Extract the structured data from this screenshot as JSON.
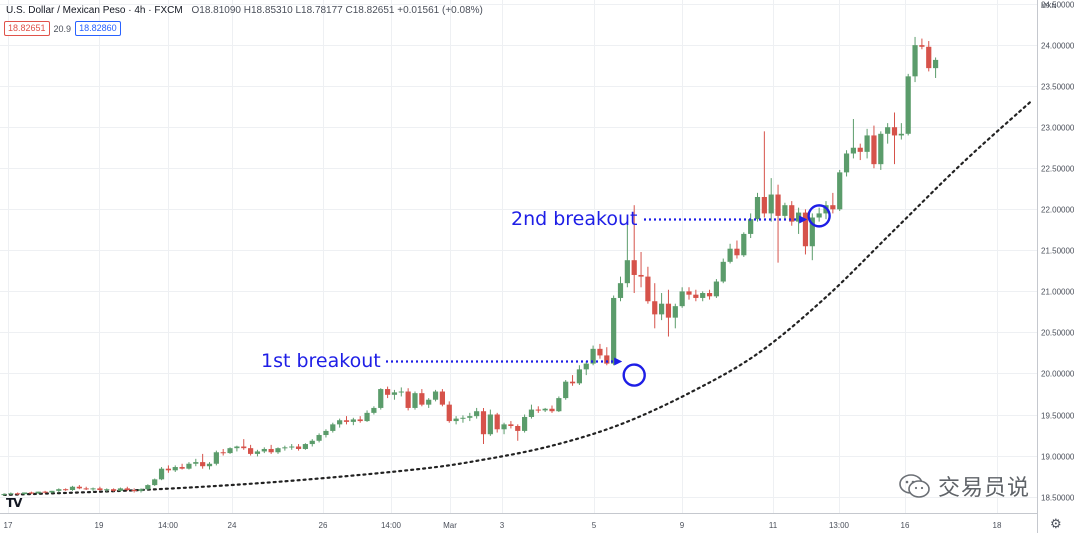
{
  "header": {
    "symbol": "U.S. Dollar / Mexican Peso · 4h · FXCM",
    "ohlc": "O18.81090 H18.85310 L18.78177 C18.82651 +0.01561 (+0.08%)"
  },
  "badges": {
    "sell": "18.82651",
    "spread": "20.9",
    "buy": "18.82860"
  },
  "currency_label": "MXN",
  "logo_text": "TV",
  "watermark_text": "交易员说",
  "annotations": [
    {
      "id": "first",
      "text": "1st breakout"
    },
    {
      "id": "second",
      "text": "2nd breakout"
    }
  ],
  "colors": {
    "up": "#5b9c6b",
    "down": "#d6524a",
    "annotation": "#1e1ee6",
    "curve": "#222222"
  },
  "chart_data": {
    "type": "candlestick",
    "y_ticks": [
      "18.50000",
      "19.00000",
      "19.50000",
      "20.00000",
      "20.50000",
      "21.00000",
      "21.50000",
      "22.00000",
      "22.50000",
      "23.00000",
      "23.50000",
      "24.00000",
      "24.50000"
    ],
    "x_ticks": [
      "17",
      "19",
      "14:00",
      "24",
      "26",
      "14:00",
      "Mar",
      "3",
      "5",
      "9",
      "11",
      "13:00",
      "16",
      "18"
    ],
    "ylim": [
      18.3,
      24.55
    ],
    "grid": true,
    "trend_curve": [
      [
        0,
        18.52
      ],
      [
        20,
        18.58
      ],
      [
        40,
        18.68
      ],
      [
        60,
        18.83
      ],
      [
        70,
        18.95
      ],
      [
        80,
        19.12
      ],
      [
        90,
        19.38
      ],
      [
        100,
        19.76
      ],
      [
        110,
        20.24
      ],
      [
        120,
        20.93
      ],
      [
        130,
        21.75
      ],
      [
        140,
        22.57
      ],
      [
        150,
        23.32
      ]
    ],
    "candles": [
      [
        18.52,
        18.54,
        18.51,
        18.53
      ],
      [
        18.53,
        18.55,
        18.52,
        18.54
      ],
      [
        18.54,
        18.55,
        18.52,
        18.53
      ],
      [
        18.53,
        18.55,
        18.52,
        18.55
      ],
      [
        18.55,
        18.56,
        18.53,
        18.54
      ],
      [
        18.54,
        18.56,
        18.53,
        18.56
      ],
      [
        18.56,
        18.57,
        18.54,
        18.55
      ],
      [
        18.55,
        18.57,
        18.54,
        18.57
      ],
      [
        18.57,
        18.6,
        18.55,
        18.59
      ],
      [
        18.59,
        18.6,
        18.57,
        18.58
      ],
      [
        18.58,
        18.63,
        18.57,
        18.62
      ],
      [
        18.62,
        18.64,
        18.59,
        18.6
      ],
      [
        18.6,
        18.62,
        18.58,
        18.59
      ],
      [
        18.59,
        18.61,
        18.57,
        18.6
      ],
      [
        18.6,
        18.62,
        18.57,
        18.58
      ],
      [
        18.58,
        18.6,
        18.56,
        18.59
      ],
      [
        18.59,
        18.6,
        18.56,
        18.57
      ],
      [
        18.57,
        18.61,
        18.56,
        18.6
      ],
      [
        18.6,
        18.62,
        18.57,
        18.58
      ],
      [
        18.58,
        18.6,
        18.55,
        18.57
      ],
      [
        18.57,
        18.6,
        18.55,
        18.59
      ],
      [
        18.59,
        18.65,
        18.58,
        18.64
      ],
      [
        18.64,
        18.72,
        18.63,
        18.71
      ],
      [
        18.71,
        18.86,
        18.7,
        18.84
      ],
      [
        18.84,
        18.88,
        18.79,
        18.82
      ],
      [
        18.82,
        18.88,
        18.8,
        18.86
      ],
      [
        18.86,
        18.9,
        18.83,
        18.84
      ],
      [
        18.84,
        18.92,
        18.83,
        18.9
      ],
      [
        18.9,
        18.96,
        18.87,
        18.92
      ],
      [
        18.92,
        19.02,
        18.84,
        18.87
      ],
      [
        18.87,
        18.92,
        18.83,
        18.9
      ],
      [
        18.9,
        19.06,
        18.88,
        19.04
      ],
      [
        19.04,
        19.08,
        19.0,
        19.03
      ],
      [
        19.03,
        19.1,
        19.02,
        19.09
      ],
      [
        19.09,
        19.12,
        19.05,
        19.11
      ],
      [
        19.11,
        19.2,
        19.07,
        19.09
      ],
      [
        19.09,
        19.13,
        19.0,
        19.02
      ],
      [
        19.02,
        19.07,
        18.99,
        19.05
      ],
      [
        19.05,
        19.1,
        19.03,
        19.08
      ],
      [
        19.08,
        19.13,
        19.02,
        19.04
      ],
      [
        19.04,
        19.1,
        19.02,
        19.09
      ],
      [
        19.09,
        19.12,
        19.06,
        19.1
      ],
      [
        19.1,
        19.14,
        19.07,
        19.11
      ],
      [
        19.11,
        19.14,
        19.06,
        19.08
      ],
      [
        19.08,
        19.15,
        19.07,
        19.14
      ],
      [
        19.14,
        19.2,
        19.11,
        19.18
      ],
      [
        19.18,
        19.27,
        19.16,
        19.25
      ],
      [
        19.25,
        19.32,
        19.22,
        19.3
      ],
      [
        19.3,
        19.4,
        19.28,
        19.38
      ],
      [
        19.38,
        19.45,
        19.34,
        19.43
      ],
      [
        19.43,
        19.48,
        19.38,
        19.41
      ],
      [
        19.41,
        19.46,
        19.37,
        19.44
      ],
      [
        19.44,
        19.48,
        19.4,
        19.42
      ],
      [
        19.42,
        19.55,
        19.41,
        19.52
      ],
      [
        19.52,
        19.6,
        19.5,
        19.58
      ],
      [
        19.58,
        19.82,
        19.56,
        19.81
      ],
      [
        19.81,
        19.84,
        19.7,
        19.74
      ],
      [
        19.74,
        19.8,
        19.68,
        19.77
      ],
      [
        19.77,
        19.83,
        19.72,
        19.78
      ],
      [
        19.78,
        19.82,
        19.55,
        19.58
      ],
      [
        19.58,
        19.78,
        19.56,
        19.76
      ],
      [
        19.76,
        19.81,
        19.6,
        19.62
      ],
      [
        19.62,
        19.7,
        19.58,
        19.68
      ],
      [
        19.68,
        19.8,
        19.66,
        19.78
      ],
      [
        19.78,
        19.81,
        19.6,
        19.62
      ],
      [
        19.62,
        19.66,
        19.4,
        19.42
      ],
      [
        19.42,
        19.48,
        19.38,
        19.45
      ],
      [
        19.45,
        19.49,
        19.4,
        19.46
      ],
      [
        19.46,
        19.52,
        19.42,
        19.48
      ],
      [
        19.48,
        19.58,
        19.45,
        19.54
      ],
      [
        19.54,
        19.58,
        19.14,
        19.26
      ],
      [
        19.26,
        19.56,
        19.24,
        19.5
      ],
      [
        19.5,
        19.52,
        19.28,
        19.32
      ],
      [
        19.32,
        19.4,
        19.26,
        19.38
      ],
      [
        19.38,
        19.42,
        19.33,
        19.36
      ],
      [
        19.36,
        19.38,
        19.18,
        19.3
      ],
      [
        19.3,
        19.5,
        19.28,
        19.47
      ],
      [
        19.47,
        19.62,
        19.45,
        19.56
      ],
      [
        19.56,
        19.6,
        19.52,
        19.55
      ],
      [
        19.55,
        19.58,
        19.53,
        19.57
      ],
      [
        19.57,
        19.61,
        19.52,
        19.54
      ],
      [
        19.54,
        19.72,
        19.53,
        19.7
      ],
      [
        19.7,
        19.92,
        19.68,
        19.9
      ],
      [
        19.9,
        19.98,
        19.85,
        19.88
      ],
      [
        19.88,
        20.1,
        19.86,
        20.05
      ],
      [
        20.05,
        20.15,
        19.98,
        20.12
      ],
      [
        20.12,
        20.34,
        20.1,
        20.3
      ],
      [
        20.3,
        20.36,
        20.18,
        20.22
      ],
      [
        20.22,
        20.32,
        20.1,
        20.12
      ],
      [
        20.12,
        20.95,
        20.1,
        20.92
      ],
      [
        20.92,
        21.18,
        20.88,
        21.1
      ],
      [
        21.1,
        21.85,
        21.05,
        21.38
      ],
      [
        21.38,
        22.05,
        20.98,
        21.2
      ],
      [
        21.2,
        21.48,
        21.05,
        21.18
      ],
      [
        21.18,
        21.3,
        20.85,
        20.88
      ],
      [
        20.88,
        21.1,
        20.55,
        20.72
      ],
      [
        20.72,
        20.98,
        20.65,
        20.85
      ],
      [
        20.85,
        21.02,
        20.45,
        20.68
      ],
      [
        20.68,
        20.85,
        20.55,
        20.82
      ],
      [
        20.82,
        21.05,
        20.8,
        21.0
      ],
      [
        21.0,
        21.05,
        20.9,
        20.96
      ],
      [
        20.96,
        21.02,
        20.88,
        20.92
      ],
      [
        20.92,
        21.0,
        20.88,
        20.98
      ],
      [
        20.98,
        21.02,
        20.9,
        20.94
      ],
      [
        20.94,
        21.15,
        20.92,
        21.12
      ],
      [
        21.12,
        21.4,
        21.1,
        21.36
      ],
      [
        21.36,
        21.58,
        21.34,
        21.52
      ],
      [
        21.52,
        21.62,
        21.4,
        21.44
      ],
      [
        21.44,
        21.72,
        21.42,
        21.7
      ],
      [
        21.7,
        21.95,
        21.65,
        21.88
      ],
      [
        21.88,
        22.2,
        21.85,
        22.15
      ],
      [
        22.15,
        22.95,
        21.9,
        21.95
      ],
      [
        21.95,
        22.38,
        21.85,
        22.18
      ],
      [
        22.18,
        22.3,
        21.35,
        21.92
      ],
      [
        21.92,
        22.08,
        21.88,
        22.05
      ],
      [
        22.05,
        22.1,
        21.8,
        21.85
      ],
      [
        21.85,
        22.02,
        21.7,
        21.96
      ],
      [
        21.96,
        22.0,
        21.45,
        21.55
      ],
      [
        21.55,
        21.95,
        21.38,
        21.9
      ],
      [
        21.9,
        22.02,
        21.85,
        21.95
      ],
      [
        21.95,
        22.1,
        21.88,
        22.05
      ],
      [
        22.05,
        22.2,
        21.95,
        22.0
      ],
      [
        22.0,
        22.48,
        21.98,
        22.45
      ],
      [
        22.45,
        22.72,
        22.4,
        22.68
      ],
      [
        22.68,
        23.1,
        22.62,
        22.75
      ],
      [
        22.75,
        22.8,
        22.6,
        22.7
      ],
      [
        22.7,
        22.98,
        22.62,
        22.9
      ],
      [
        22.9,
        23.02,
        22.5,
        22.55
      ],
      [
        22.55,
        22.95,
        22.48,
        22.92
      ],
      [
        22.92,
        23.05,
        22.8,
        23.0
      ],
      [
        23.0,
        23.18,
        22.55,
        22.9
      ],
      [
        22.9,
        23.05,
        22.85,
        22.92
      ],
      [
        22.92,
        23.65,
        22.9,
        23.62
      ],
      [
        23.62,
        24.1,
        23.55,
        24.0
      ],
      [
        24.0,
        24.08,
        23.95,
        23.98
      ],
      [
        23.98,
        24.05,
        23.68,
        23.72
      ],
      [
        23.72,
        23.85,
        23.6,
        23.82
      ]
    ]
  }
}
